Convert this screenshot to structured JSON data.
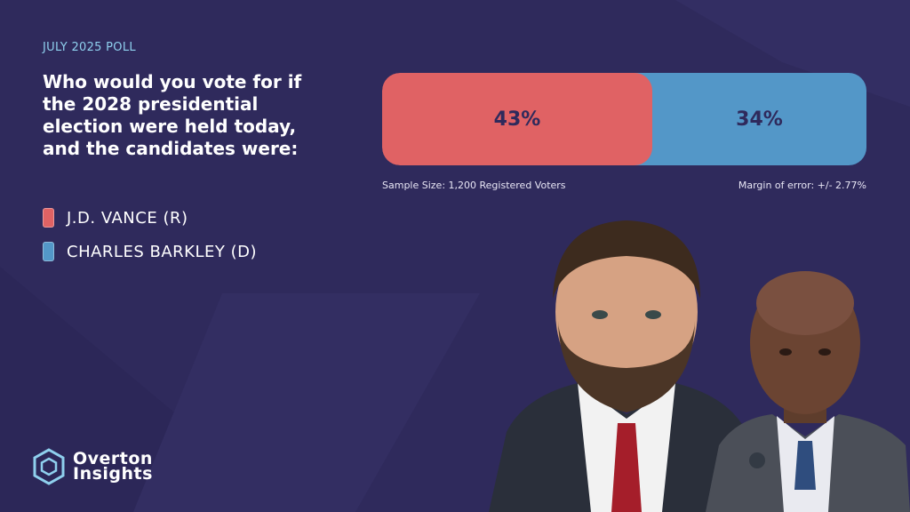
{
  "eyebrow": "JULY 2025 POLL",
  "question": "Who would you vote for if the 2028 presidential election were held today, and the candidates were:",
  "colors": {
    "background": "#2f2a5c",
    "republican": "#e06264",
    "democrat": "#5397c8",
    "accent": "#8fd0ee"
  },
  "chart_data": {
    "type": "bar",
    "orientation": "horizontal-stacked",
    "categories": [
      "J.D. VANCE (R)",
      "CHARLES BARKLEY (D)"
    ],
    "values": [
      43,
      34
    ],
    "value_labels": [
      "43%",
      "34%"
    ],
    "legend_placement": "left",
    "grid": false
  },
  "legend": [
    {
      "label": "J.D. VANCE (R)",
      "color": "#e06264"
    },
    {
      "label": "CHARLES BARKLEY (D)",
      "color": "#5397c8"
    }
  ],
  "notes": {
    "sample_size": "Sample Size: 1,200 Registered Voters",
    "margin_of_error": "Margin of error: +/- 2.77%"
  },
  "brand": {
    "line1": "Overton",
    "line2": "Insights"
  }
}
